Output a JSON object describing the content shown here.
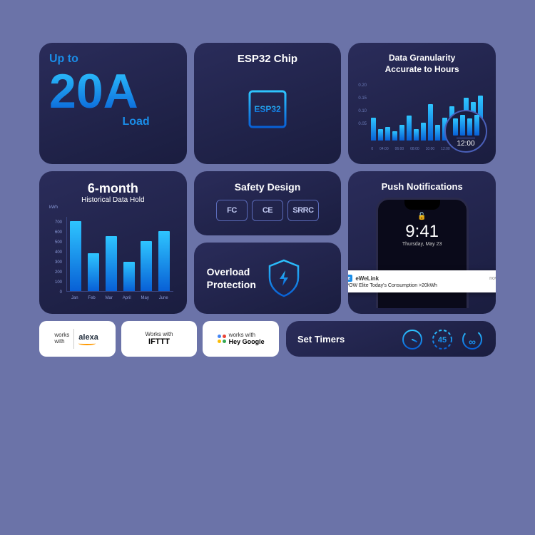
{
  "colors": {
    "page_bg": "#6b73a8",
    "card_bg_top": "#2a2c5a",
    "card_bg_bottom": "#1a1d3f",
    "accent_top": "#2ec5ff",
    "accent_bottom": "#0860d6",
    "text_blue": "#1a8de8",
    "grid_line": "#3a4580",
    "muted": "#8a9ad8"
  },
  "cardA": {
    "upto": "Up to",
    "value": "20A",
    "load": "Load"
  },
  "cardB": {
    "title": "ESP32 Chip",
    "chip_label": "ESP32"
  },
  "cardC": {
    "title_l1": "Data Granularity",
    "title_l2": "Accurate to Hours",
    "y_ticks": [
      "0.20",
      "0.15",
      "0.10",
      "0.05"
    ],
    "bars": [
      0.1,
      0.05,
      0.06,
      0.04,
      0.07,
      0.11,
      0.05,
      0.08,
      0.16,
      0.07,
      0.1,
      0.15,
      0.06,
      0.19,
      0.17,
      0.2
    ],
    "y_max": 0.22,
    "x_ticks": [
      "0",
      "04:00",
      "06:00",
      "08:00",
      "10:00",
      "12:00"
    ],
    "lens_bars": [
      0.17,
      0.2,
      0.17,
      0.2
    ],
    "lens_time": "12:00"
  },
  "cardD": {
    "title": "6-month",
    "sub": "Historical Data Hold",
    "y_label": "kWh",
    "y_ticks": [
      700,
      600,
      500,
      400,
      300,
      200,
      100,
      0
    ],
    "y_max": 750,
    "months": [
      "Jan",
      "Feb",
      "Mar",
      "April",
      "May",
      "June"
    ],
    "values": [
      700,
      380,
      550,
      290,
      500,
      600
    ]
  },
  "cardE1": {
    "title": "Safety Design",
    "certs": [
      "FC",
      "CE",
      "SRRC"
    ]
  },
  "cardE2": {
    "title_l1": "Overload",
    "title_l2": "Protection"
  },
  "cardF": {
    "title": "Push Notifications",
    "phone_time": "9:41",
    "phone_date": "Thursday, May 23",
    "notif_app": "eWeLink",
    "notif_when": "now",
    "notif_body": "POW Elite Today's Consumption >20kWh"
  },
  "badges": {
    "alexa": {
      "works": "works",
      "with": "with",
      "brand": "alexa"
    },
    "ifttt": {
      "works": "Works with",
      "brand": "IFTTT"
    },
    "google": {
      "works": "works with",
      "brand": "Hey Google",
      "dots": [
        "#4285f4",
        "#ea4335",
        "#fbbc05",
        "#34a853"
      ]
    }
  },
  "cardT": {
    "title": "Set Timers",
    "countdown": "45"
  }
}
